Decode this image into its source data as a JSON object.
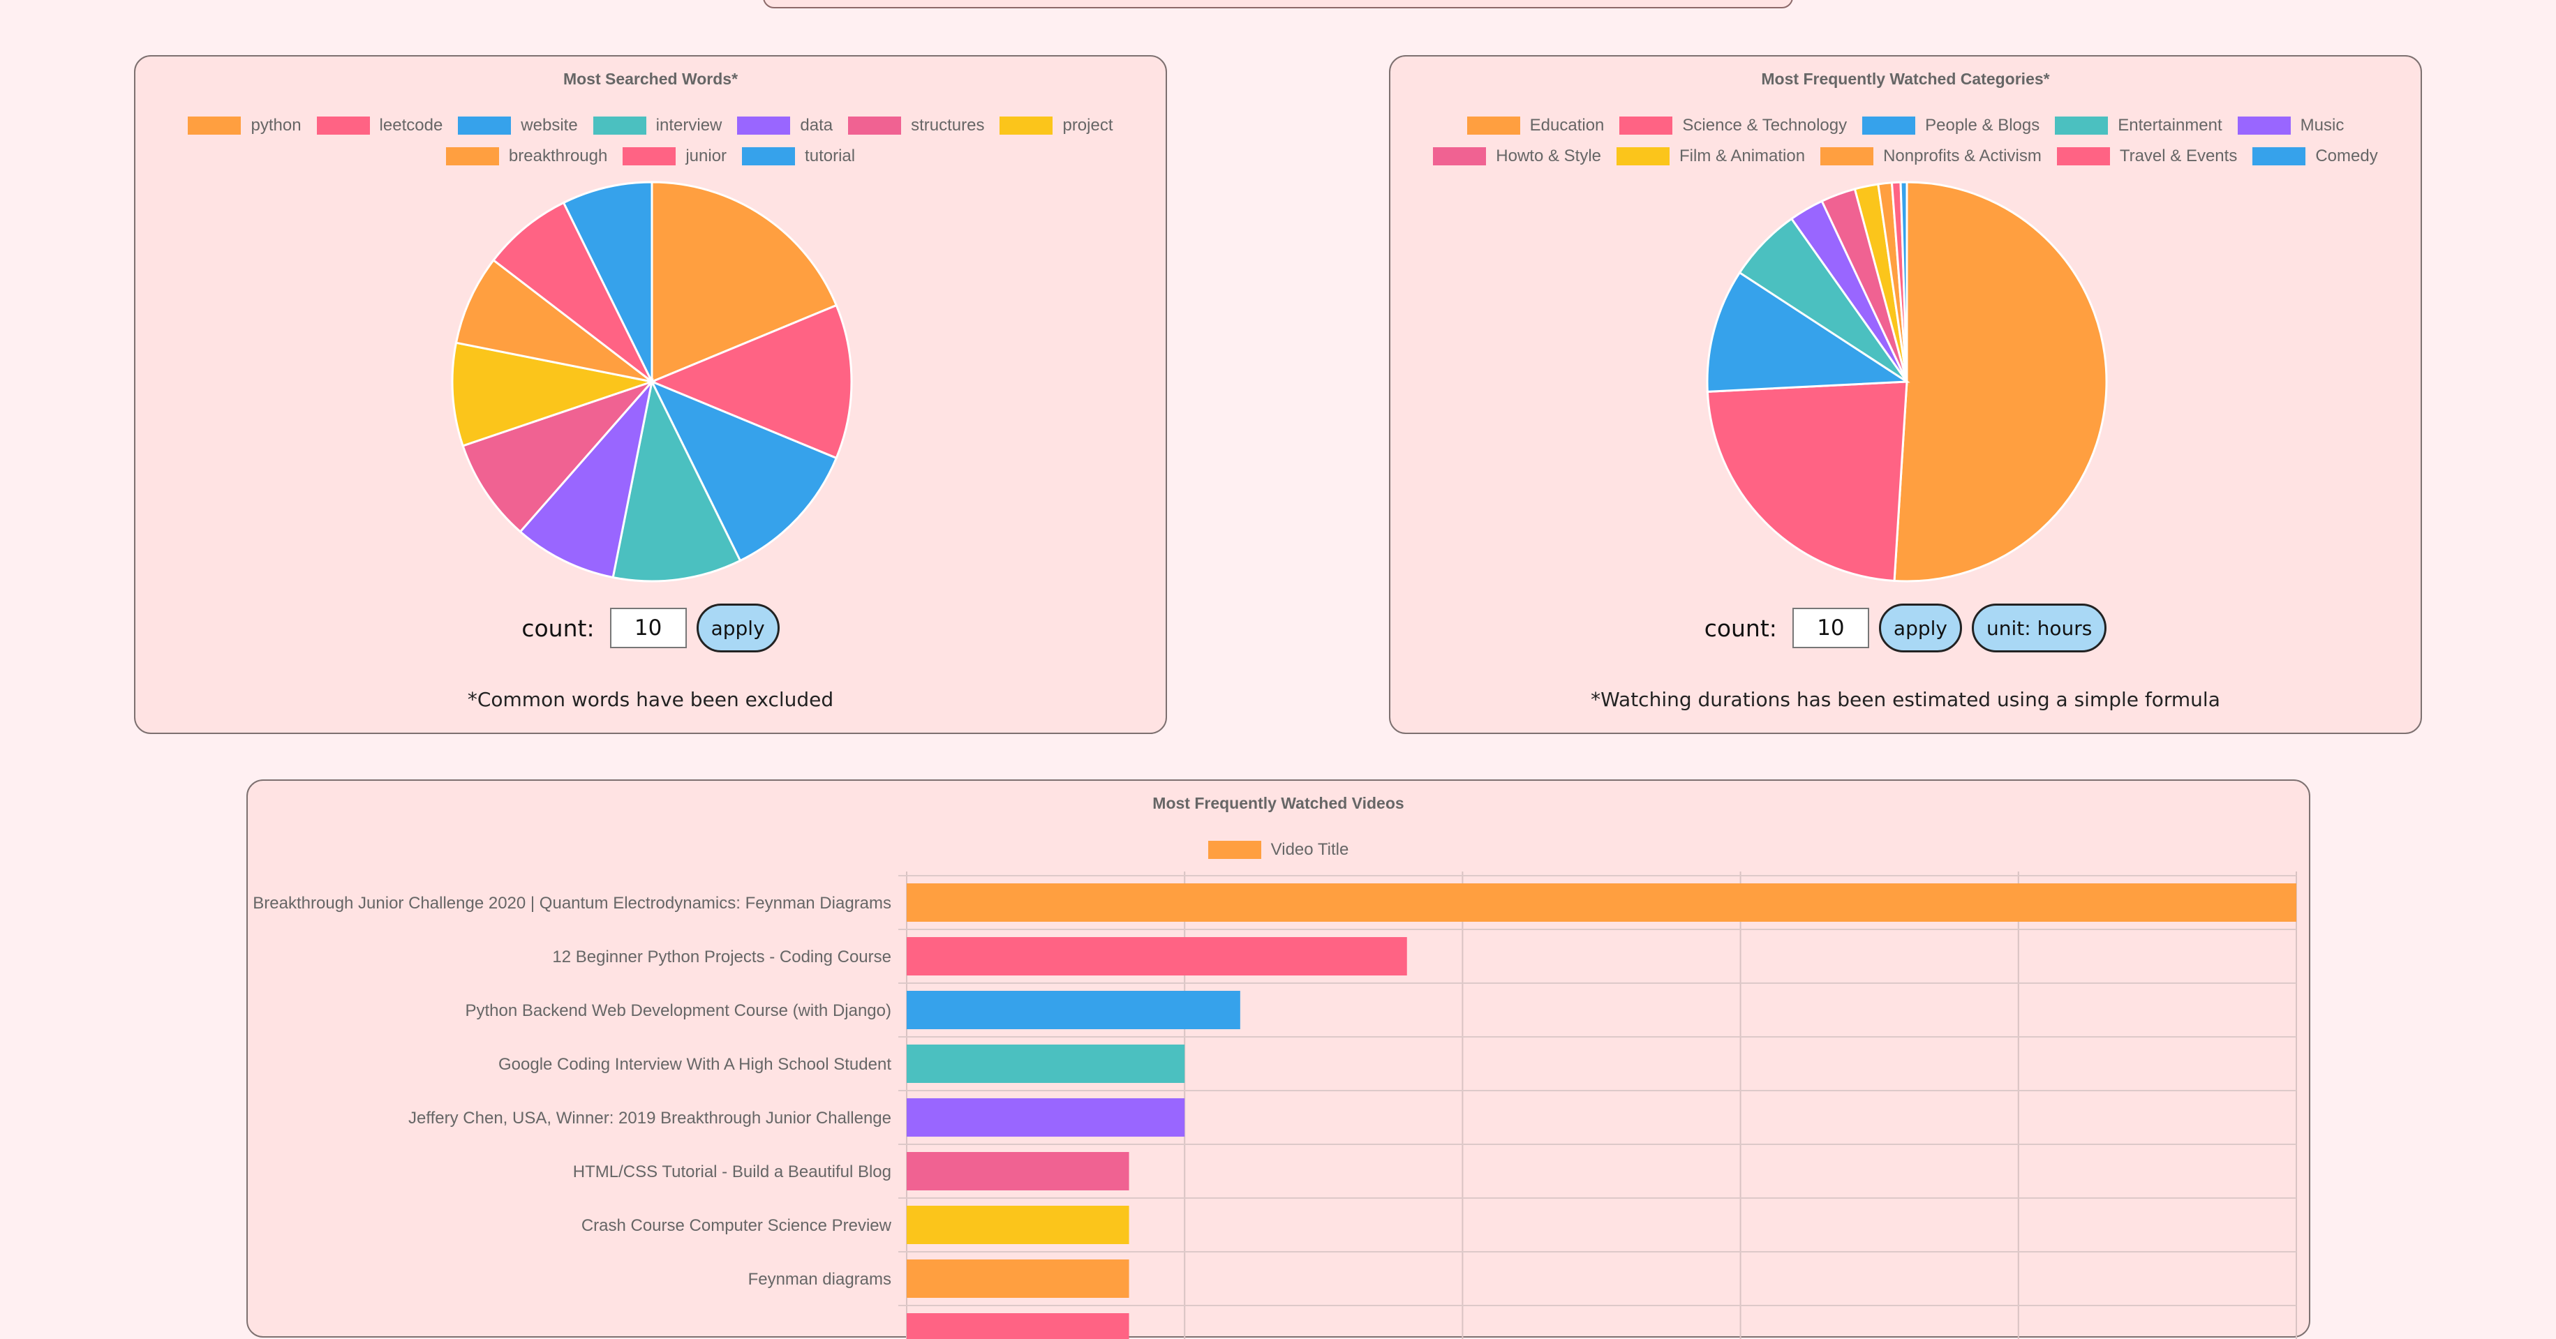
{
  "chart_data": [
    {
      "type": "pie",
      "title": "Most Searched Words*",
      "categories": [
        "python",
        "leetcode",
        "website",
        "interview",
        "data",
        "structures",
        "project",
        "breakthrough",
        "junior",
        "tutorial"
      ],
      "values": [
        18,
        12,
        11,
        10,
        8,
        8,
        8,
        7,
        7,
        7
      ],
      "controls": {
        "count_label": "count:",
        "count_value": "10",
        "apply_label": "apply"
      },
      "footnote": "*Common words have been excluded"
    },
    {
      "type": "pie",
      "title": "Most Frequently Watched Categories*",
      "categories": [
        "Education",
        "Science & Technology",
        "People & Blogs",
        "Entertainment",
        "Music",
        "Howto & Style",
        "Film & Animation",
        "Nonprofits & Activism",
        "Travel & Events",
        "Comedy"
      ],
      "values": [
        51.0,
        23.2,
        10.0,
        6.0,
        2.8,
        2.8,
        1.9,
        1.1,
        0.7,
        0.5
      ],
      "controls": {
        "count_label": "count:",
        "count_value": "10",
        "apply_label": "apply",
        "unit_label": "unit: hours"
      },
      "footnote": "*Watching durations has been estimated using a simple formula"
    },
    {
      "type": "bar",
      "orientation": "horizontal",
      "title": "Most Frequently Watched Videos",
      "legend": [
        "Video Title"
      ],
      "categories": [
        "Breakthrough Junior Challenge 2020 | Quantum Electrodynamics: Feynman Diagrams",
        "12 Beginner Python Projects - Coding Course",
        "Python Backend Web Development Course (with Django)",
        "Google Coding Interview With A High School Student",
        "Jeffery Chen, USA, Winner: 2019 Breakthrough Junior Challenge",
        "HTML/CSS Tutorial - Build a Beautiful Blog",
        "Crash Course Computer Science Preview",
        "Feynman diagrams",
        ""
      ],
      "values": [
        25,
        9,
        6,
        5,
        5,
        4,
        4,
        4,
        4
      ],
      "xlim": [
        0,
        25
      ]
    }
  ],
  "palette": [
    "#ff9f40",
    "#ff6384",
    "#36a2eb",
    "#4bc0c0",
    "#9966ff",
    "#f06292",
    "#fbc51b",
    "#ff9f40",
    "#ff6384",
    "#36a2eb"
  ],
  "bar_palette": [
    "#ff9f40",
    "#ff6384",
    "#36a2eb",
    "#4bc0c0",
    "#9966ff",
    "#f06292",
    "#fbc51b",
    "#ff9f40",
    "#ff6384"
  ]
}
